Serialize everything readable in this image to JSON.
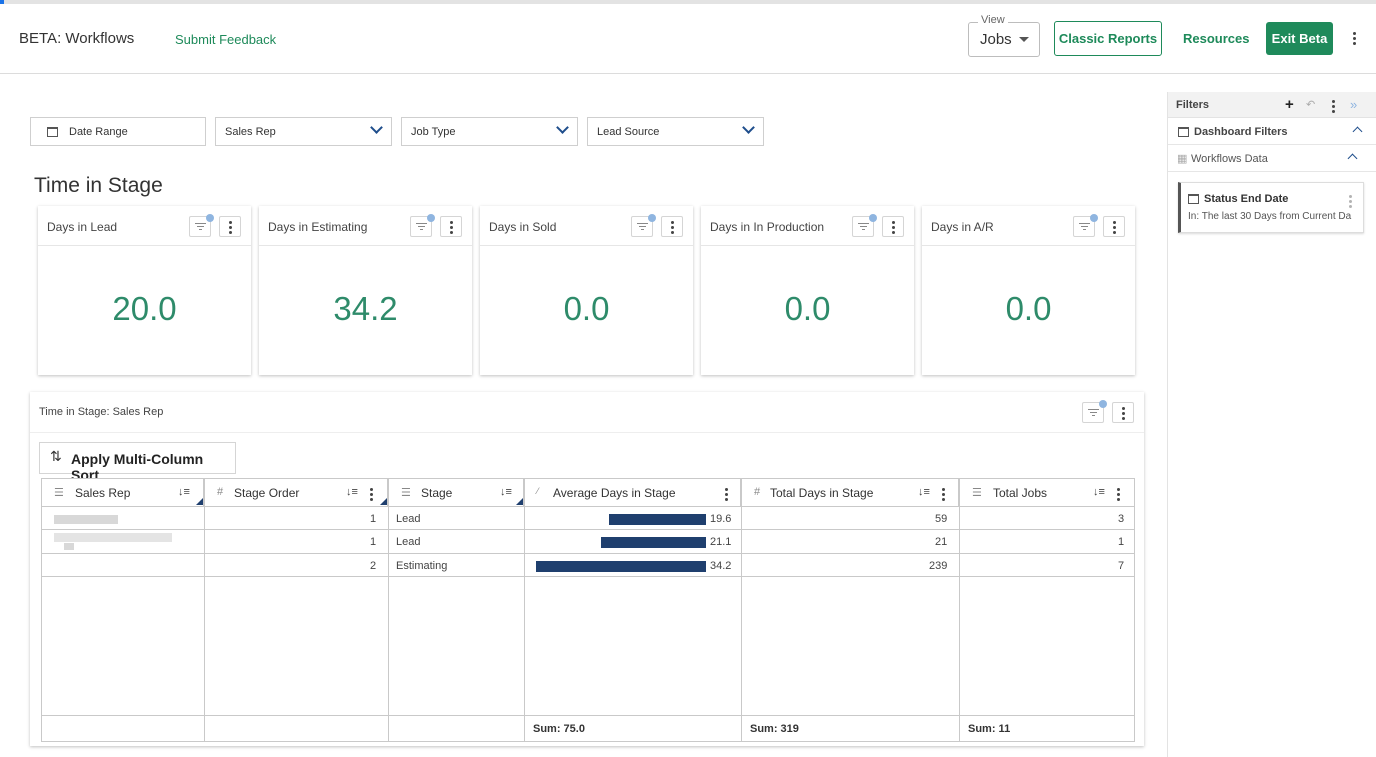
{
  "header": {
    "app_title": "BETA: Workflows",
    "feedback_link": "Submit Feedback",
    "view_label": "View",
    "view_value": "Jobs",
    "classic_reports": "Classic Reports",
    "resources": "Resources",
    "exit_beta": "Exit Beta",
    "accent_color": "#1f8a5b"
  },
  "filters_bar": {
    "date_range": "Date Range",
    "sales_rep": "Sales Rep",
    "job_type": "Job Type",
    "lead_source": "Lead Source"
  },
  "section_title": "Time in Stage",
  "kpis": [
    {
      "title": "Days in Lead",
      "value": "20.0"
    },
    {
      "title": "Days in Estimating",
      "value": "34.2"
    },
    {
      "title": "Days in Sold",
      "value": "0.0"
    },
    {
      "title": "Days in In Production",
      "value": "0.0"
    },
    {
      "title": "Days in A/R",
      "value": "0.0"
    }
  ],
  "table_panel": {
    "title": "Time in Stage: Sales Rep",
    "sort_button": "Apply Multi-Column Sort",
    "columns": [
      "Sales Rep",
      "Stage Order",
      "Stage",
      "Average Days in Stage",
      "Total Days in Stage",
      "Total Jobs"
    ],
    "rows": [
      {
        "sales_rep": "",
        "stage_order": "1",
        "stage": "Lead",
        "avg_days": "19.6",
        "avg_days_value": 19.6,
        "total_days": "59",
        "total_jobs": "3"
      },
      {
        "sales_rep": "",
        "stage_order": "1",
        "stage": "Lead",
        "avg_days": "21.1",
        "avg_days_value": 21.1,
        "total_days": "21",
        "total_jobs": "1"
      },
      {
        "sales_rep": "",
        "stage_order": "2",
        "stage": "Estimating",
        "avg_days": "34.2",
        "avg_days_value": 34.2,
        "total_days": "239",
        "total_jobs": "7"
      }
    ],
    "sums": {
      "avg_days": "Sum: 75.0",
      "total_days": "Sum: 319",
      "total_jobs": "Sum: 11"
    }
  },
  "side_panel": {
    "title": "Filters",
    "dashboard_filters": "Dashboard Filters",
    "workflows_data": "Workflows Data",
    "card_title": "Status End Date",
    "card_value": "In: The last 30 Days from Current Da"
  },
  "colors": {
    "kpi_value": "#2e8b6a",
    "bar": "#1f3f6e",
    "badge": "#8fb5e0"
  }
}
